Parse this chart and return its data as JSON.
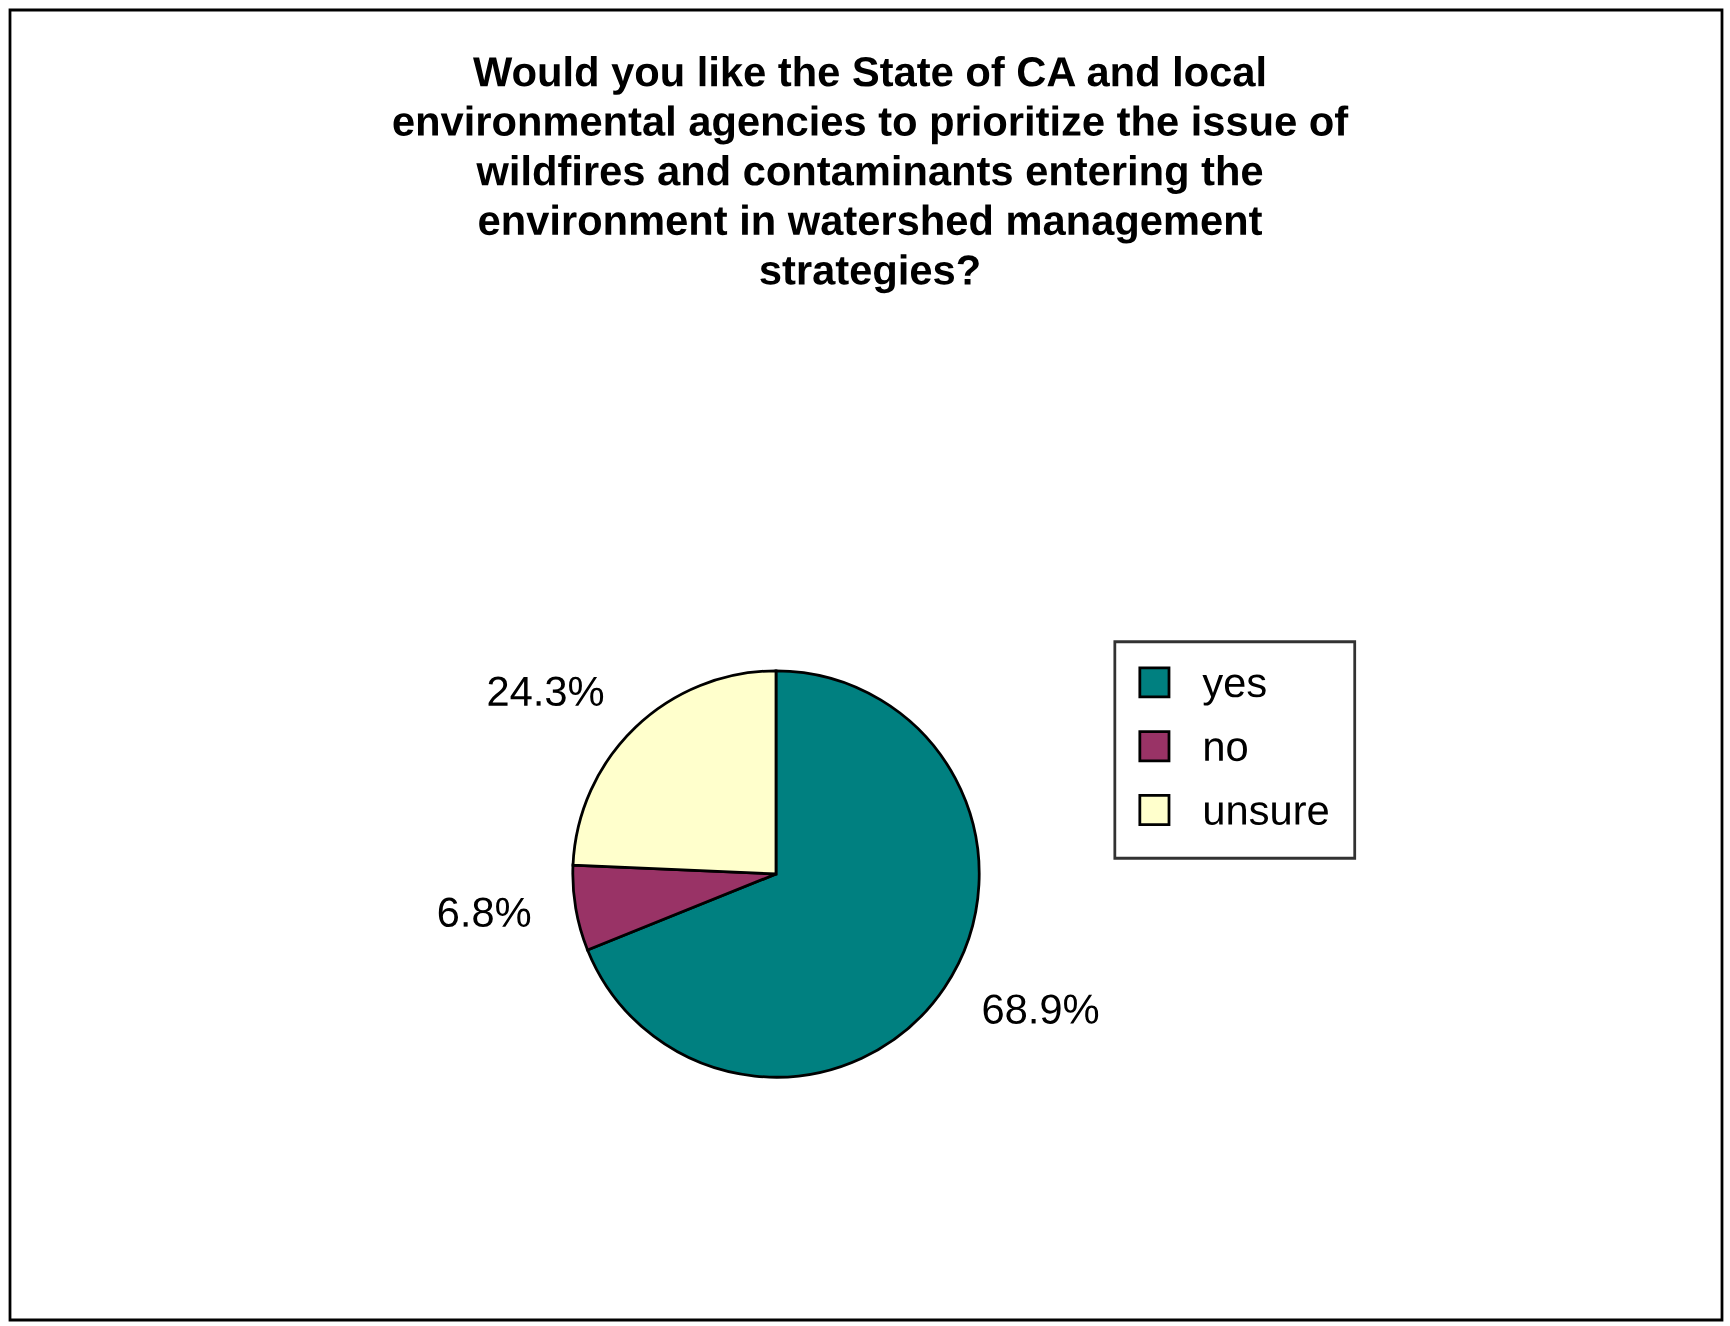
{
  "chart_data": {
    "type": "pie",
    "title": "Would you like the State of CA and local\nenvironmental agencies to prioritize the issue of\nwildfires and contaminants entering the\nenvironment in watershed management\nstrategies?",
    "categories": [
      "yes",
      "no",
      "unsure"
    ],
    "values": [
      68.9,
      6.8,
      24.3
    ],
    "value_labels": [
      "68.9%",
      "6.8%",
      "24.3%"
    ],
    "colors": [
      "#008080",
      "#993366",
      "#ffffcc"
    ],
    "legend": "right"
  }
}
